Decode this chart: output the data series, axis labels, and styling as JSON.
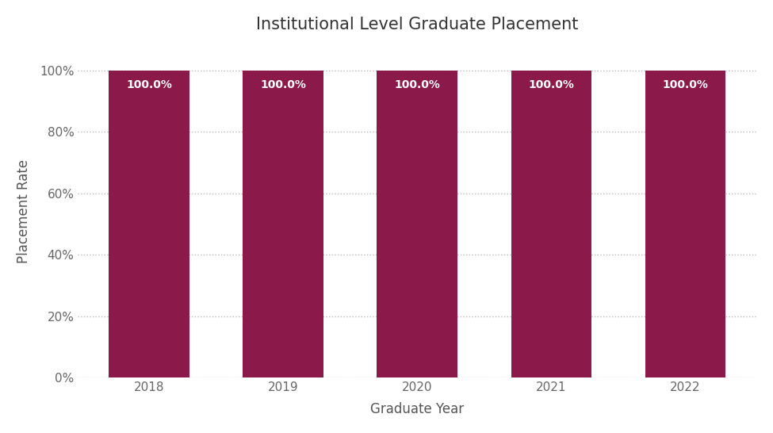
{
  "title": "Institutional Level Graduate Placement",
  "xlabel": "Graduate Year",
  "ylabel": "Placement Rate",
  "categories": [
    "2018",
    "2019",
    "2020",
    "2021",
    "2022"
  ],
  "values": [
    100,
    100,
    100,
    100,
    100
  ],
  "bar_color": "#8B1A4A",
  "label_color": "#FFFFFF",
  "label_text": [
    "100.0%",
    "100.0%",
    "100.0%",
    "100.0%",
    "100.0%"
  ],
  "ylim": [
    0,
    108
  ],
  "yticks": [
    0,
    20,
    40,
    60,
    80,
    100
  ],
  "ytick_labels": [
    "0%",
    "20%",
    "40%",
    "60%",
    "80%",
    "100%"
  ],
  "background_color": "#FFFFFF",
  "grid_color": "#BBBBBB",
  "title_fontsize": 15,
  "axis_label_fontsize": 12,
  "tick_fontsize": 11,
  "bar_label_fontsize": 10,
  "title_color": "#333333",
  "axis_label_color": "#555555",
  "tick_color": "#666666",
  "bar_width": 0.6
}
